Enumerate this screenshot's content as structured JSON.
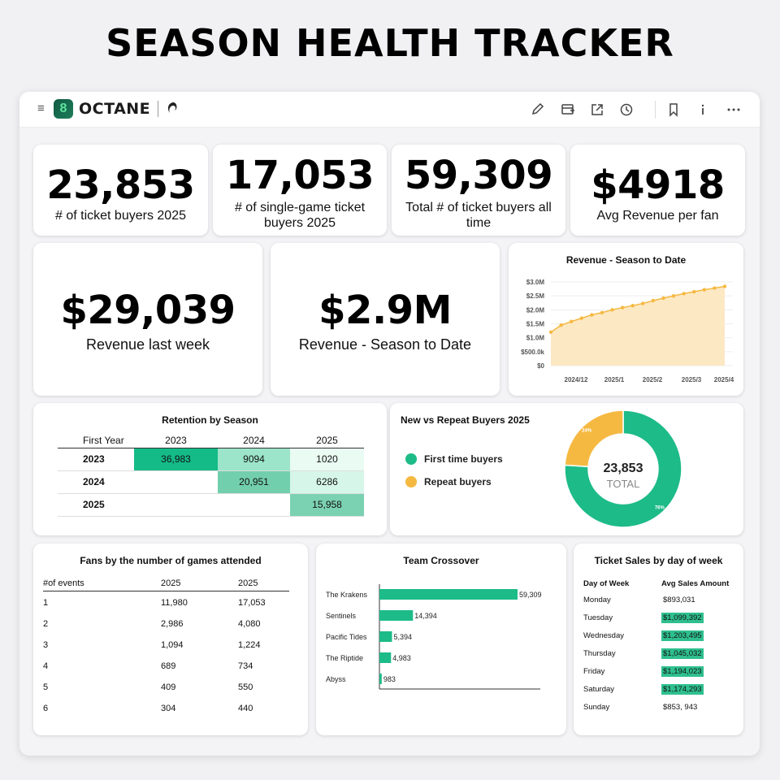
{
  "page": {
    "title": "SEASON HEALTH TRACKER"
  },
  "app": {
    "name": "OCTANE",
    "badge": "8"
  },
  "toolbar": {
    "icons": [
      "menu-icon",
      "edit-icon",
      "calendar-add-icon",
      "share-icon",
      "clock-icon",
      "bookmark-icon",
      "info-icon",
      "more-icon"
    ]
  },
  "kpis": {
    "buyers_2025": {
      "value": "23,853",
      "label": "# of ticket buyers 2025"
    },
    "single_game": {
      "value": "17,053",
      "label": "# of single-game ticket buyers 2025"
    },
    "all_time": {
      "value": "59,309",
      "label": "Total # of ticket buyers all time"
    },
    "avg_revenue": {
      "value": "$4918",
      "label": "Avg Revenue per fan"
    },
    "last_week": {
      "value": "$29,039",
      "label": "Revenue last week"
    },
    "season_to_date": {
      "value": "$2.9M",
      "label": "Revenue - Season to Date"
    }
  },
  "colors": {
    "accent_green": "#1dbb88",
    "accent_orange": "#f5b942",
    "area_fill": "#fde8c4"
  },
  "revenue_chart": {
    "title": "Revenue - Season to Date",
    "chart_data": {
      "type": "area",
      "title": "Revenue - Season to Date",
      "y_ticks": [
        "$0",
        "$500.0k",
        "$1.0M",
        "$1.5M",
        "$2.0M",
        "$2.5M",
        "$3.0M"
      ],
      "x_ticks": [
        "2024/12",
        "2025/1",
        "2025/2",
        "2025/3",
        "2025/4"
      ],
      "ylim": [
        0,
        3000000
      ],
      "values": [
        1200000,
        1450000,
        1580000,
        1700000,
        1820000,
        1900000,
        2000000,
        2080000,
        2150000,
        2230000,
        2330000,
        2420000,
        2500000,
        2580000,
        2650000,
        2720000,
        2780000,
        2840000
      ]
    }
  },
  "retention": {
    "title": "Retention by Season",
    "header": [
      "First Year",
      "2023",
      "2024",
      "2025"
    ],
    "rows": [
      {
        "year": "2023",
        "cells": [
          "36,983",
          "9094",
          "1020"
        ]
      },
      {
        "year": "2024",
        "cells": [
          "",
          "20,951",
          "6286"
        ]
      },
      {
        "year": "2025",
        "cells": [
          "",
          "",
          "15,958"
        ]
      }
    ]
  },
  "new_vs_repeat": {
    "title": "New vs Repeat Buyers 2025",
    "center_value": "23,853",
    "center_label": "TOTAL",
    "legend": [
      "First time buyers",
      "Repeat buyers"
    ],
    "chart_data": {
      "type": "pie",
      "labels": [
        "First time buyers",
        "Repeat buyers"
      ],
      "values": [
        76,
        24
      ],
      "data_labels": [
        "76%",
        "24%"
      ]
    }
  },
  "fans_by_games": {
    "title": "Fans by the number of games attended",
    "header": [
      "#of events",
      "2025",
      "2025"
    ],
    "rows": [
      [
        "1",
        "11,980",
        "17,053"
      ],
      [
        "2",
        "2,986",
        "4,080"
      ],
      [
        "3",
        "1,094",
        "1,224"
      ],
      [
        "4",
        "689",
        "734"
      ],
      [
        "5",
        "409",
        "550"
      ],
      [
        "6",
        "304",
        "440"
      ]
    ]
  },
  "team_crossover": {
    "title": "Team Crossover",
    "chart_data": {
      "type": "bar",
      "categories": [
        "The Krakens",
        "Sentinels",
        "Pacific Tides",
        "The Riptide",
        "Abyss"
      ],
      "values": [
        59309,
        14394,
        5394,
        4983,
        983
      ],
      "data_labels": [
        "59,309",
        "14,394",
        "5,394",
        "4,983",
        "983"
      ]
    }
  },
  "day_sales": {
    "title": "Ticket Sales by day of week",
    "header": [
      "Day of Week",
      "Avg Sales Amount"
    ],
    "rows": [
      {
        "day": "Monday",
        "amount": "$893,031",
        "highlight": false
      },
      {
        "day": "Tuesday",
        "amount": "$1,099,392",
        "highlight": true
      },
      {
        "day": "Wednesday",
        "amount": "$1,203,495",
        "highlight": true
      },
      {
        "day": "Thursday",
        "amount": "$1,045,032",
        "highlight": true
      },
      {
        "day": "Friday",
        "amount": "$1,194,023",
        "highlight": true
      },
      {
        "day": "Saturday",
        "amount": "$1,174,293",
        "highlight": true
      },
      {
        "day": "Sunday",
        "amount": "$853, 943",
        "highlight": false
      }
    ]
  }
}
